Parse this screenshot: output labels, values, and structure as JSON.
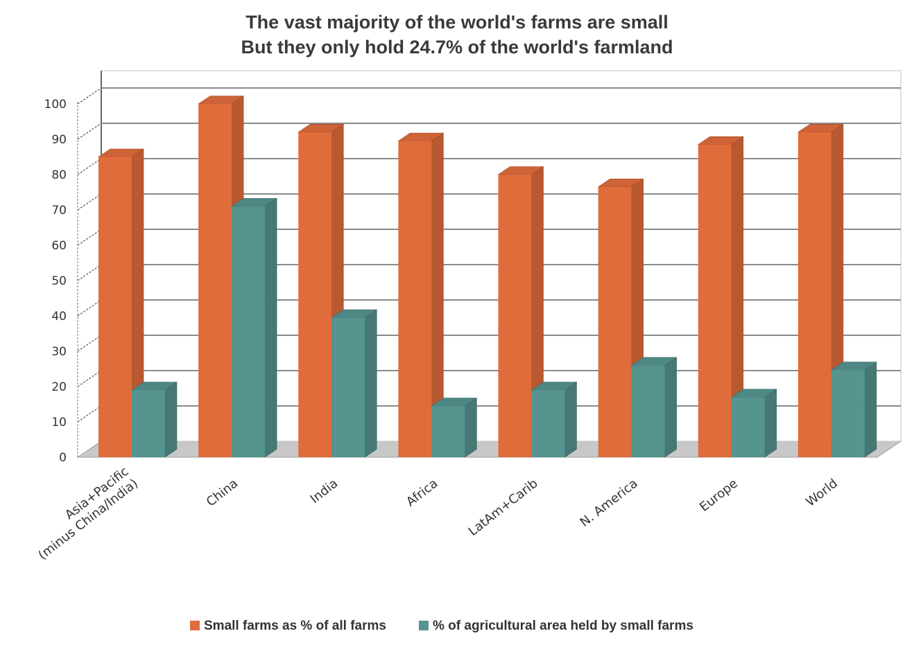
{
  "chart_data": {
    "type": "bar",
    "title": "The vast majority of the world's farms are small",
    "subtitle": "But they only hold 24.7% of the world's farmland",
    "categories": [
      [
        "Asia+Pacific",
        "(minus China/India)"
      ],
      [
        "China"
      ],
      [
        "India"
      ],
      [
        "Africa"
      ],
      [
        "LatAm+Carib"
      ],
      [
        "N. America"
      ],
      [
        "Europe"
      ],
      [
        "World"
      ]
    ],
    "series": [
      {
        "name": "Small farms as % of all farms",
        "values": [
          85,
          100,
          92,
          89.5,
          80,
          76.5,
          88.5,
          92
        ],
        "color": "#e06c3c"
      },
      {
        "name": "% of agricultural area held by small farms",
        "values": [
          19,
          71,
          39.5,
          14.5,
          19,
          26,
          17,
          24.7
        ],
        "color": "#55948f"
      }
    ],
    "yticks": [
      "0",
      "10",
      "20",
      "30",
      "40",
      "50",
      "60",
      "70",
      "80",
      "90",
      "100"
    ],
    "ylim": [
      0,
      100
    ],
    "xlabel": "",
    "ylabel": "",
    "grid": true,
    "legend_position": "bottom",
    "style": "3d-bar"
  }
}
